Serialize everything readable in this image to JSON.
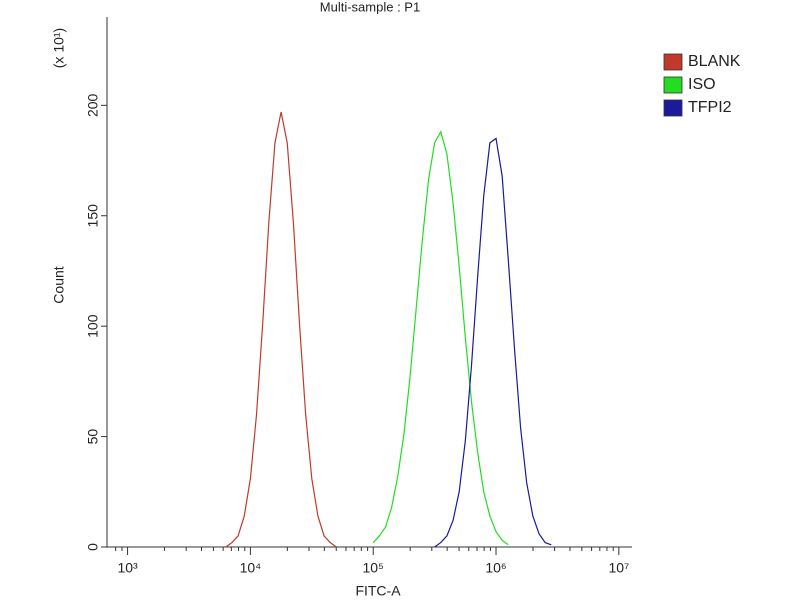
{
  "chart_data": {
    "type": "line",
    "title": "Multi-sample : P1",
    "xlabel": "FITC-A",
    "ylabel": "Count",
    "y_multiplier": "(x 10¹)",
    "xscale": "log",
    "xlim": [
      680,
      12800000
    ],
    "ylim": [
      0,
      240
    ],
    "xticks": [
      {
        "value": 1000,
        "label": "10³"
      },
      {
        "value": 10000,
        "label": "10⁴"
      },
      {
        "value": 100000,
        "label": "10⁵"
      },
      {
        "value": 1000000,
        "label": "10⁶"
      },
      {
        "value": 10000000,
        "label": "10⁷"
      }
    ],
    "xminorticks": [
      800,
      900,
      2000,
      3000,
      4000,
      5000,
      6000,
      7000,
      8000,
      9000,
      20000,
      30000,
      40000,
      50000,
      60000,
      70000,
      80000,
      90000,
      200000,
      300000,
      400000,
      500000,
      600000,
      700000,
      800000,
      900000,
      2000000,
      3000000,
      4000000,
      5000000,
      6000000,
      7000000,
      8000000,
      9000000
    ],
    "yticks": [
      0,
      50,
      100,
      150,
      200
    ],
    "legend": "right",
    "series": [
      {
        "name": "BLANK",
        "color": "#c0392b",
        "x": [
          6310,
          7079,
          7943,
          8913,
          10000,
          11220,
          12590,
          14130,
          15850,
          17780,
          19950,
          22390,
          25120,
          28180,
          31620,
          35480,
          39810,
          44670,
          50120
        ],
        "values": [
          0,
          2,
          5,
          14,
          31,
          60,
          101,
          147,
          183,
          197,
          183,
          147,
          101,
          60,
          31,
          14,
          5,
          2,
          0
        ]
      },
      {
        "name": "ISO",
        "color": "#22dd22",
        "x": [
          100000,
          112200,
          125900,
          141300,
          158500,
          177800,
          199500,
          223900,
          251200,
          281800,
          316200,
          354800,
          398100,
          446700,
          501200,
          562300,
          631000,
          707900,
          794300,
          891300,
          1000000,
          1122000,
          1259000
        ],
        "values": [
          2,
          5,
          9,
          18,
          32,
          51,
          77,
          108,
          139,
          166,
          183,
          188,
          178,
          156,
          127,
          95,
          66,
          43,
          25,
          14,
          7,
          3,
          1
        ]
      },
      {
        "name": "TFPI2",
        "color": "#1a1a9a",
        "x": [
          316200,
          354800,
          398100,
          446700,
          501200,
          562300,
          631000,
          707900,
          794300,
          891300,
          1000000,
          1122000,
          1259000,
          1413000,
          1585000,
          1778000,
          1995000,
          2239000,
          2512000,
          2818000
        ],
        "values": [
          0,
          2,
          5,
          12,
          25,
          48,
          82,
          122,
          159,
          183,
          185,
          168,
          130,
          90,
          54,
          29,
          14,
          6,
          2,
          1
        ]
      }
    ]
  }
}
